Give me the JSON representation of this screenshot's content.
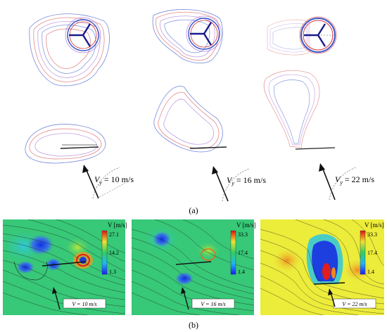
{
  "panel_a": {
    "label": "(a)",
    "rotor_icon": "rotor-disk-icon",
    "wake_colors": [
      "#3b56c8",
      "#d23a3a",
      "#9a5fd0"
    ],
    "velocity_labels": [
      {
        "prefix": "V",
        "subscript": "y",
        "rest": " = 10 m/s"
      },
      {
        "prefix": "V",
        "subscript": "y",
        "rest": " = 16 m/s"
      },
      {
        "prefix": "V",
        "subscript": "y",
        "rest": " = 22 m/s"
      }
    ]
  },
  "panel_b": {
    "label": "(b)",
    "colorbar_title": "V [m/s]",
    "plots": [
      {
        "velocity_label": "V = 10 m/s",
        "cb_max": "27.1",
        "cb_mid": "14.2",
        "cb_min": "1.3"
      },
      {
        "velocity_label": "V = 16 m/s",
        "cb_max": "33.3",
        "cb_mid": "17.4",
        "cb_min": "1.4"
      },
      {
        "velocity_label": "V = 22 m/s",
        "cb_max": "33.3",
        "cb_mid": "17.4",
        "cb_min": "1.4"
      }
    ],
    "field_colors": {
      "green": "#37c878",
      "yellow": "#ecec3a",
      "blue": "#1d3fe0",
      "cyan": "#39c9d6",
      "red": "#e21d1d"
    }
  }
}
